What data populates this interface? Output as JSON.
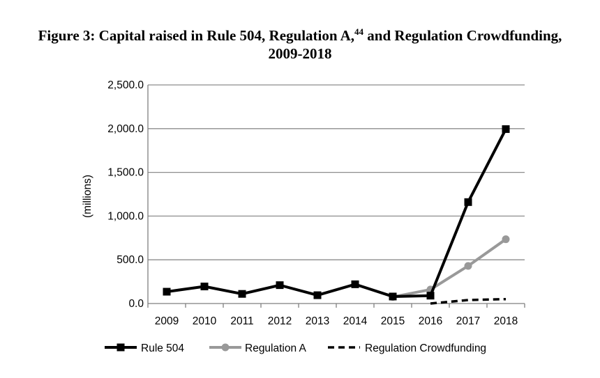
{
  "chart_data": {
    "type": "line",
    "title_prefix": "Figure 3: Capital raised in Rule 504, Regulation A,",
    "title_footnote": "44",
    "title_suffix": " and Regulation Crowdfunding,",
    "title_line2": "2009-2018",
    "ylabel": "(millions)",
    "xlabel": "",
    "ylim": [
      0,
      2500
    ],
    "yticks": [
      {
        "value": 0,
        "label": "0.0"
      },
      {
        "value": 500,
        "label": "500.0"
      },
      {
        "value": 1000,
        "label": "1,000.0"
      },
      {
        "value": 1500,
        "label": "1,500.0"
      },
      {
        "value": 2000,
        "label": "2,000.0"
      },
      {
        "value": 2500,
        "label": "2,500.0"
      }
    ],
    "categories": [
      "2009",
      "2010",
      "2011",
      "2012",
      "2013",
      "2014",
      "2015",
      "2016",
      "2017",
      "2018"
    ],
    "grid": true,
    "legend_position": "bottom",
    "series": [
      {
        "name": "Rule 504",
        "color": "#000000",
        "style": "solid",
        "marker": "square",
        "values": [
          135,
          195,
          110,
          210,
          95,
          220,
          80,
          90,
          1160,
          1995
        ]
      },
      {
        "name": "Regulation A",
        "color": "#999999",
        "style": "solid",
        "marker": "circle",
        "values": [
          null,
          null,
          null,
          null,
          null,
          null,
          75,
          160,
          430,
          735
        ]
      },
      {
        "name": "Regulation Crowdfunding",
        "color": "#000000",
        "style": "dashed",
        "marker": "none",
        "values": [
          null,
          null,
          null,
          null,
          null,
          null,
          null,
          0,
          40,
          50
        ]
      }
    ]
  }
}
